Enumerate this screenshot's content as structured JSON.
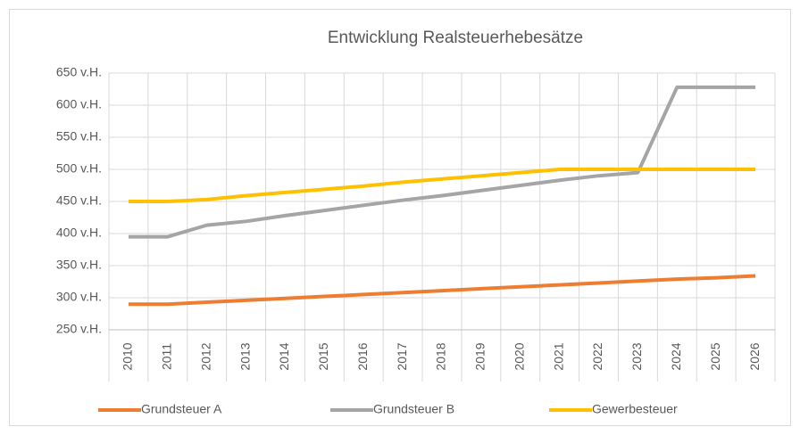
{
  "chart_data": {
    "type": "line",
    "title": "Entwicklung Realsteuerhebesätze",
    "categories": [
      "2010",
      "2011",
      "2012",
      "2013",
      "2014",
      "2015",
      "2016",
      "2017",
      "2018",
      "2019",
      "2020",
      "2021",
      "2022",
      "2023",
      "2024",
      "2025",
      "2026"
    ],
    "series": [
      {
        "name": "Grundsteuer A",
        "color": "#ed7d31",
        "values": [
          290,
          290,
          293,
          296,
          299,
          302,
          305,
          308,
          311,
          314,
          317,
          320,
          323,
          326,
          329,
          331,
          334
        ]
      },
      {
        "name": "Grundsteuer B",
        "color": "#a5a5a5",
        "values": [
          395,
          395,
          413,
          419,
          428,
          436,
          444,
          452,
          459,
          467,
          475,
          483,
          490,
          495,
          628,
          628,
          628
        ]
      },
      {
        "name": "Gewerbesteuer",
        "color": "#ffc000",
        "values": [
          450,
          450,
          453,
          459,
          464,
          469,
          474,
          480,
          485,
          490,
          495,
          500,
          500,
          500,
          500,
          500,
          500
        ]
      }
    ],
    "ylim": [
      250,
      650
    ],
    "yticks": [
      {
        "value": 250,
        "label": "250 v.H."
      },
      {
        "value": 300,
        "label": "300 v.H."
      },
      {
        "value": 350,
        "label": "350 v.H."
      },
      {
        "value": 400,
        "label": "400 v.H."
      },
      {
        "value": 450,
        "label": "450 v.H."
      },
      {
        "value": 500,
        "label": "500 v.H."
      },
      {
        "value": 550,
        "label": "550 v.H."
      },
      {
        "value": 600,
        "label": "600 v.H."
      },
      {
        "value": 650,
        "label": "650 v.H."
      }
    ],
    "grid": true,
    "legend": "bottom"
  }
}
